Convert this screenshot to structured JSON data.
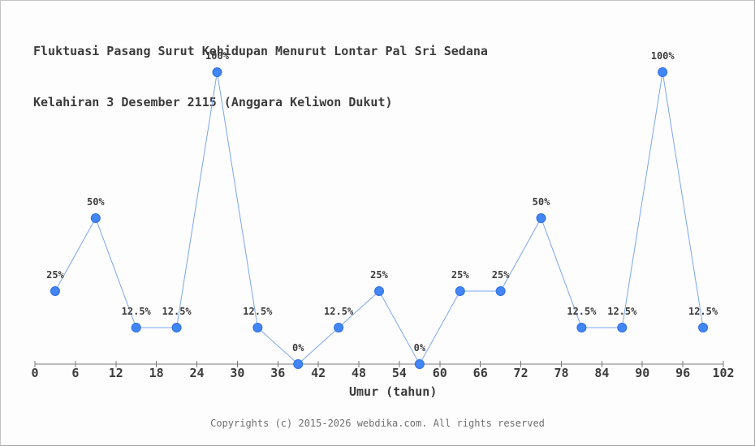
{
  "page": {
    "background_color": "#fdfdfd",
    "border_color": "#b0b0b0"
  },
  "header": {
    "title_line1": "Fluktuasi Pasang Surut Kehidupan Menurut Lontar Pal Sri Sedana",
    "title_line2": "Kelahiran 3 Desember 2115 (Anggara Keliwon Dukut)"
  },
  "footer": {
    "copyright": "Copyrights (c) 2015-2026 webdika.com. All rights reserved"
  },
  "chart_data": {
    "type": "line",
    "title": "Fluktuasi Pasang Surut Kehidupan Menurut Lontar Pal Sri Sedana Kelahiran 3 Desember 2115 (Anggara Keliwon Dukut)",
    "xlabel": "Umur (tahun)",
    "ylabel": "",
    "x": [
      3,
      9,
      15,
      21,
      27,
      33,
      39,
      45,
      51,
      57,
      63,
      69,
      75,
      81,
      87,
      93,
      99
    ],
    "values": [
      25,
      50,
      12.5,
      12.5,
      100,
      12.5,
      0,
      12.5,
      25,
      0,
      25,
      25,
      50,
      12.5,
      12.5,
      100,
      12.5
    ],
    "point_labels": [
      "25%",
      "50%",
      "12.5%",
      "12.5%",
      "100%",
      "12.5%",
      "0%",
      "12.5%",
      "25%",
      "0%",
      "25%",
      "25%",
      "50%",
      "12.5%",
      "12.5%",
      "100%",
      "12.5%"
    ],
    "x_ticks": [
      0,
      6,
      12,
      18,
      24,
      30,
      36,
      42,
      48,
      54,
      60,
      66,
      72,
      78,
      84,
      90,
      96,
      102
    ],
    "xlim": [
      0,
      102
    ],
    "ylim": [
      0,
      100
    ],
    "grid": false,
    "legend": false,
    "colors": {
      "line": "#7aa6ef",
      "marker_fill": "#4285f4",
      "marker_stroke": "#2e6fdf",
      "axis": "#7a7a7a",
      "tick_label": "#3c3c3c",
      "point_label": "#3c3c3c"
    }
  }
}
